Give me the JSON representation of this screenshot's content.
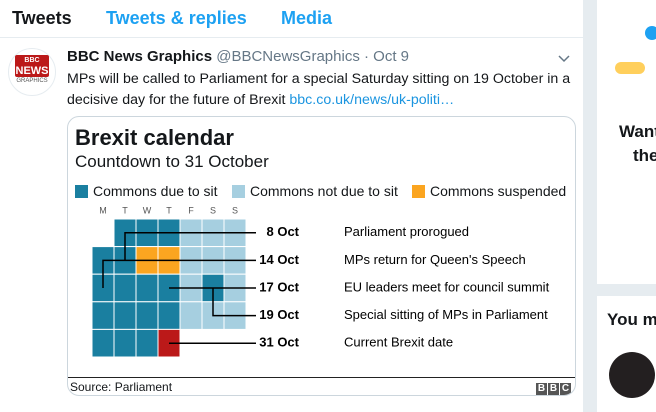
{
  "tabs": [
    "Tweets",
    "Tweets & replies",
    "Media"
  ],
  "tweet": {
    "avatar": [
      "BBC",
      "NEWS",
      "GRAPHICS"
    ],
    "name": "BBC News Graphics",
    "handle": "@BBCNewsGraphics",
    "sep": "·",
    "date": "Oct 9",
    "text": "MPs will be called to Parliament for a special Saturday sitting on 19 October in a decisive day for the future of Brexit",
    "link": "bbc.co.uk/news/uk-politi…",
    "card": {
      "title": "Brexit calendar",
      "subtitle": "Countdown to 31 October",
      "legend": [
        {
          "label": "Commons due to sit",
          "color": "#1a7fa0"
        },
        {
          "label": "Commons not due to sit",
          "color": "#a6cfe0"
        },
        {
          "label": "Commons suspended",
          "color": "#fba520"
        }
      ],
      "weekdays": [
        "M",
        "T",
        "W",
        "T",
        "F",
        "S",
        "S"
      ],
      "events": [
        {
          "date": "8 Oct",
          "label": "Parliament prorogued"
        },
        {
          "date": "14 Oct",
          "label": "MPs return for Queen's Speech"
        },
        {
          "date": "17 Oct",
          "label": "EU leaders meet for council summit"
        },
        {
          "date": "19 Oct",
          "label": "Special sitting of MPs in Parliament"
        },
        {
          "date": "31 Oct",
          "label": "Current Brexit date"
        }
      ],
      "source": "Source: Parliament",
      "logo": [
        "B",
        "B",
        "C"
      ]
    }
  },
  "sidebar": {
    "card_lines": [
      "Want",
      "the"
    ],
    "heading": "You m"
  }
}
